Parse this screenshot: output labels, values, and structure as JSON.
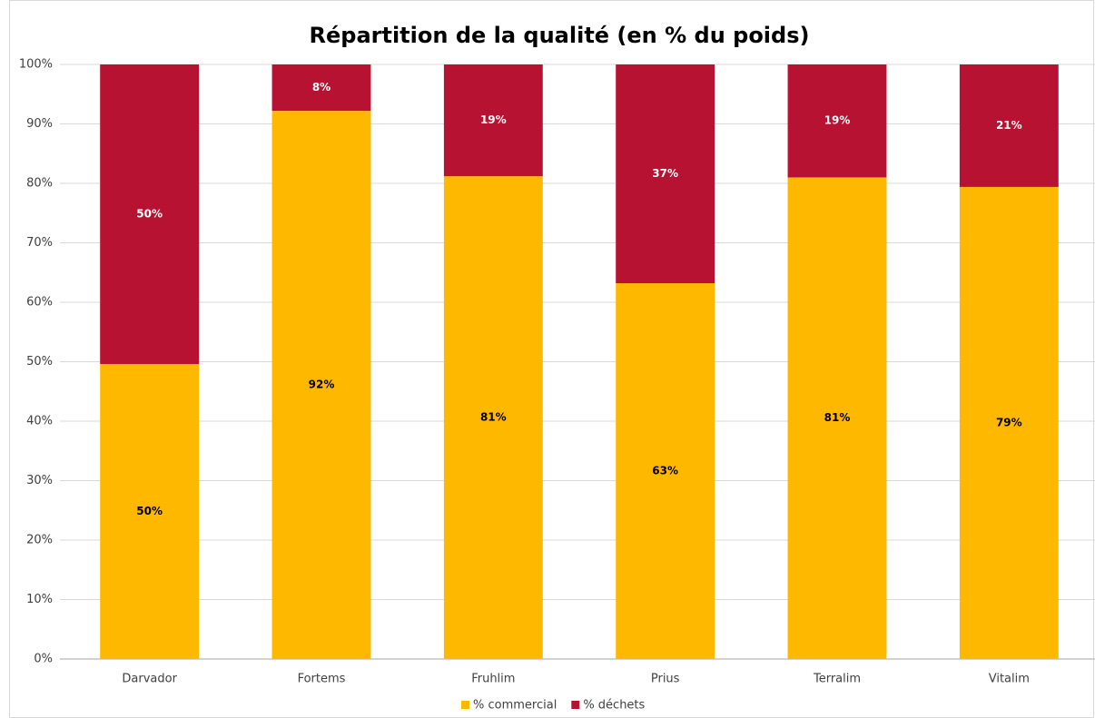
{
  "chart_data": {
    "type": "stacked_bar",
    "title": "Répartition de la qualité (en % du poids)",
    "categories": [
      "Darvador",
      "Fortems",
      "Fruhlim",
      "Prius",
      "Terralim",
      "Vitalim"
    ],
    "series": [
      {
        "name": "% commercial",
        "color": "#ffb800",
        "label_color": "#000000",
        "values": [
          49.6,
          92.2,
          81.2,
          63.2,
          81,
          79.4
        ],
        "value_labels": [
          "50%",
          "92%",
          "81%",
          "63%",
          "81%",
          "79%"
        ]
      },
      {
        "name": "% déchets",
        "color": "#b81232",
        "label_color": "#ffffff",
        "values": [
          50.4,
          7.8,
          18.8,
          36.8,
          19,
          20.6
        ],
        "value_labels": [
          "50%",
          "8%",
          "19%",
          "37%",
          "19%",
          "21%"
        ]
      }
    ],
    "ylim": [
      0,
      100
    ],
    "yticks": [
      {
        "value": 0,
        "label": "0%"
      },
      {
        "value": 10,
        "label": "10%"
      },
      {
        "value": 20,
        "label": "20%"
      },
      {
        "value": 30,
        "label": "30%"
      },
      {
        "value": 40,
        "label": "40%"
      },
      {
        "value": 50,
        "label": "50%"
      },
      {
        "value": 60,
        "label": "60%"
      },
      {
        "value": 70,
        "label": "70%"
      },
      {
        "value": 80,
        "label": "80%"
      },
      {
        "value": 90,
        "label": "90%"
      },
      {
        "value": 100,
        "label": "100%"
      }
    ],
    "grid": true,
    "legend": "bottom"
  }
}
